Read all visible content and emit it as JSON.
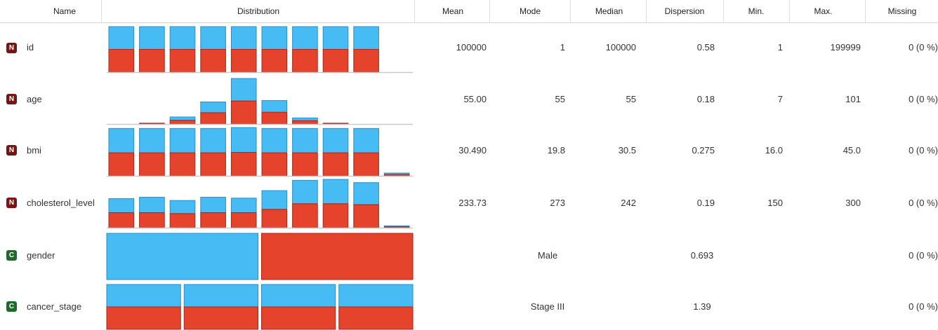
{
  "colors": {
    "blue": "#47bbf3",
    "red": "#e5432c",
    "numeric_badge": "#7a1412",
    "categorical_badge": "#1d6b2a"
  },
  "header": {
    "name": "Name",
    "distribution": "Distribution",
    "mean": "Mean",
    "mode": "Mode",
    "median": "Median",
    "dispersion": "Dispersion",
    "min": "Min.",
    "max": "Max.",
    "missing": "Missing"
  },
  "rows": [
    {
      "type_letter": "N",
      "type": "numeric",
      "name": "id",
      "mean": "100000",
      "mode": "1",
      "median": "100000",
      "dispersion": "0.58",
      "min": "1",
      "max": "199999",
      "missing": "0 (0 %)",
      "distribution": {
        "kind": "histogram",
        "bins": [
          [
            0.5,
            0.5
          ],
          [
            0.5,
            0.5
          ],
          [
            0.5,
            0.5
          ],
          [
            0.5,
            0.5
          ],
          [
            0.5,
            0.5
          ],
          [
            0.5,
            0.5
          ],
          [
            0.5,
            0.5
          ],
          [
            0.5,
            0.5
          ],
          [
            0.5,
            0.5
          ],
          [
            0,
            0
          ]
        ]
      }
    },
    {
      "type_letter": "N",
      "type": "numeric",
      "name": "age",
      "mean": "55.00",
      "mode": "55",
      "median": "55",
      "dispersion": "0.18",
      "min": "7",
      "max": "101",
      "missing": "0 (0 %)",
      "distribution": {
        "kind": "histogram",
        "bins": [
          [
            0,
            0
          ],
          [
            0.01,
            0.01
          ],
          [
            0.08,
            0.07
          ],
          [
            0.24,
            0.23
          ],
          [
            0.49,
            0.48
          ],
          [
            0.25,
            0.25
          ],
          [
            0.07,
            0.06
          ],
          [
            0.01,
            0.01
          ],
          [
            0,
            0
          ],
          [
            0,
            0
          ]
        ]
      }
    },
    {
      "type_letter": "N",
      "type": "numeric",
      "name": "bmi",
      "mean": "30.490",
      "mode": "19.8",
      "median": "30.5",
      "dispersion": "0.275",
      "min": "16.0",
      "max": "45.0",
      "missing": "0 (0 %)",
      "distribution": {
        "kind": "histogram",
        "bins": [
          [
            0.49,
            0.52
          ],
          [
            0.49,
            0.52
          ],
          [
            0.49,
            0.52
          ],
          [
            0.49,
            0.52
          ],
          [
            0.5,
            0.53
          ],
          [
            0.49,
            0.52
          ],
          [
            0.49,
            0.52
          ],
          [
            0.49,
            0.52
          ],
          [
            0.49,
            0.52
          ],
          [
            0.03,
            0.03
          ]
        ]
      }
    },
    {
      "type_letter": "N",
      "type": "numeric",
      "name": "cholesterol_level",
      "mean": "233.73",
      "mode": "273",
      "median": "242",
      "dispersion": "0.19",
      "min": "150",
      "max": "300",
      "missing": "0 (0 %)",
      "distribution": {
        "kind": "histogram",
        "bins": [
          [
            0.32,
            0.3
          ],
          [
            0.32,
            0.33
          ],
          [
            0.3,
            0.28
          ],
          [
            0.32,
            0.33
          ],
          [
            0.32,
            0.31
          ],
          [
            0.39,
            0.4
          ],
          [
            0.51,
            0.5
          ],
          [
            0.51,
            0.52
          ],
          [
            0.49,
            0.47
          ],
          [
            0.02,
            0.02
          ]
        ]
      }
    },
    {
      "type_letter": "C",
      "type": "categorical",
      "name": "gender",
      "mean": "",
      "mode": "Male",
      "median": "",
      "dispersion": "0.693",
      "min": "",
      "max": "",
      "missing": "0 (0 %)",
      "distribution": {
        "kind": "categories",
        "bins": [
          [
            0,
            1
          ],
          [
            1,
            0
          ]
        ]
      }
    },
    {
      "type_letter": "C",
      "type": "categorical",
      "name": "cancer_stage",
      "mean": "",
      "mode": "Stage III",
      "median": "",
      "dispersion": "1.39",
      "min": "",
      "max": "",
      "missing": "0 (0 %)",
      "distribution": {
        "kind": "categories",
        "bins": [
          [
            0.5,
            0.5
          ],
          [
            0.5,
            0.5
          ],
          [
            0.5,
            0.5
          ],
          [
            0.5,
            0.5
          ]
        ]
      }
    }
  ]
}
